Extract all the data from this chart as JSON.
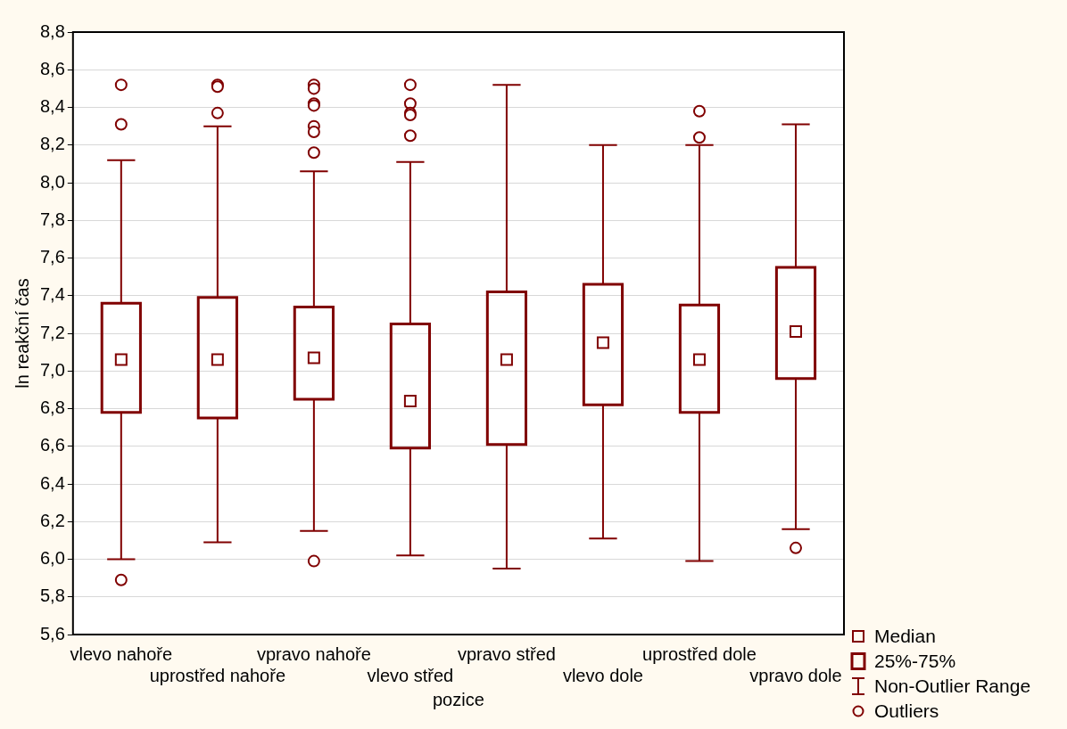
{
  "chart_data": {
    "type": "box",
    "xlabel": "pozice",
    "ylabel": "ln reakční čas",
    "categories": [
      "vlevo nahoře",
      "uprostřed nahoře",
      "vpravo nahoře",
      "vlevo střed",
      "vpravo střed",
      "vlevo dole",
      "uprostřed dole",
      "vpravo dole"
    ],
    "ylim": [
      5.6,
      8.8
    ],
    "yticks": [
      {
        "value": 5.6,
        "label": "5,6"
      },
      {
        "value": 5.8,
        "label": "5,8"
      },
      {
        "value": 6.0,
        "label": "6,0"
      },
      {
        "value": 6.2,
        "label": "6,2"
      },
      {
        "value": 6.4,
        "label": "6,4"
      },
      {
        "value": 6.6,
        "label": "6,6"
      },
      {
        "value": 6.8,
        "label": "6,8"
      },
      {
        "value": 7.0,
        "label": "7,0"
      },
      {
        "value": 7.2,
        "label": "7,2"
      },
      {
        "value": 7.4,
        "label": "7,4"
      },
      {
        "value": 7.6,
        "label": "7,6"
      },
      {
        "value": 7.8,
        "label": "7,8"
      },
      {
        "value": 8.0,
        "label": "8,0"
      },
      {
        "value": 8.2,
        "label": "8,2"
      },
      {
        "value": 8.4,
        "label": "8,4"
      },
      {
        "value": 8.6,
        "label": "8,6"
      },
      {
        "value": 8.8,
        "label": "8,8"
      }
    ],
    "grid": "y",
    "marker": "square",
    "annotations": [
      "Median",
      "25%-75%",
      "Non-Outlier Range",
      "Outliers"
    ],
    "series": [
      {
        "color": "#800000",
        "boxes": [
          {
            "low": 6.0,
            "q1": 6.78,
            "median": 7.06,
            "q3": 7.36,
            "high": 8.12,
            "outliers": [
              8.52,
              8.31,
              5.89
            ]
          },
          {
            "low": 6.09,
            "q1": 6.75,
            "median": 7.06,
            "q3": 7.39,
            "high": 8.3,
            "outliers": [
              8.52,
              8.51,
              8.37
            ]
          },
          {
            "low": 6.15,
            "q1": 6.85,
            "median": 7.07,
            "q3": 7.34,
            "high": 8.06,
            "outliers": [
              8.52,
              8.5,
              8.42,
              8.41,
              8.3,
              8.27,
              8.16,
              5.99
            ]
          },
          {
            "low": 6.02,
            "q1": 6.59,
            "median": 6.84,
            "q3": 7.25,
            "high": 8.11,
            "outliers": [
              8.52,
              8.42,
              8.37,
              8.36,
              8.25
            ]
          },
          {
            "low": 5.95,
            "q1": 6.61,
            "median": 7.06,
            "q3": 7.42,
            "high": 8.52
          },
          {
            "low": 6.11,
            "q1": 6.82,
            "median": 7.15,
            "q3": 7.46,
            "high": 8.2
          },
          {
            "low": 5.99,
            "q1": 6.78,
            "median": 7.06,
            "q3": 7.35,
            "high": 8.2,
            "outliers": [
              8.38,
              8.24
            ]
          },
          {
            "low": 6.16,
            "q1": 6.96,
            "median": 7.21,
            "q3": 7.55,
            "high": 8.31,
            "outliers": [
              6.06
            ]
          }
        ]
      }
    ]
  }
}
